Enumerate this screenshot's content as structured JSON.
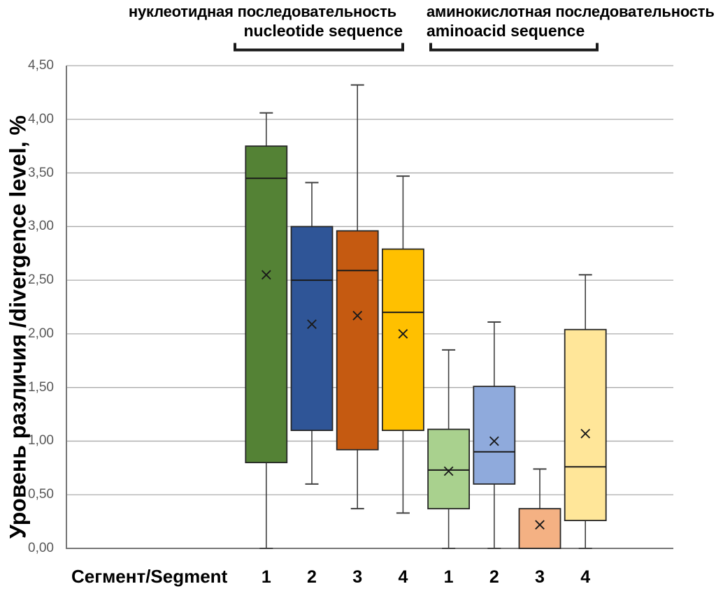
{
  "chart_data": {
    "type": "boxplot",
    "title_groups": [
      {
        "line1": "нуклеотидная последовательность",
        "line2": "nucleotide sequence"
      },
      {
        "line1": "аминокислотная последовательность",
        "line2": "aminoacid sequence"
      }
    ],
    "ylabel": "Уровень различия /divergence level, %",
    "xlabel": "Сегмент/Segment",
    "ylim": [
      0,
      4.5
    ],
    "ytick_step": 0.5,
    "ytick_labels": [
      "0,00",
      "0,50",
      "1,00",
      "1,50",
      "2,00",
      "2,50",
      "3,00",
      "3,50",
      "4,00",
      "4,50"
    ],
    "grid": true,
    "categories": [
      "1",
      "2",
      "3",
      "4",
      "1",
      "2",
      "3",
      "4"
    ],
    "series": [
      {
        "segment": "1",
        "group": "nucleotide sequence",
        "color": "#548235",
        "min": 0.0,
        "q1": 0.8,
        "median": 3.45,
        "q3": 3.75,
        "max": 4.06,
        "mean": 2.55
      },
      {
        "segment": "2",
        "group": "nucleotide sequence",
        "color": "#2F5597",
        "min": 0.6,
        "q1": 1.1,
        "median": 2.5,
        "q3": 3.0,
        "max": 3.41,
        "mean": 2.09
      },
      {
        "segment": "3",
        "group": "nucleotide sequence",
        "color": "#C55A11",
        "min": 0.37,
        "q1": 0.92,
        "median": 2.59,
        "q3": 2.96,
        "max": 4.32,
        "mean": 2.17
      },
      {
        "segment": "4",
        "group": "nucleotide sequence",
        "color": "#FFC000",
        "min": 0.33,
        "q1": 1.1,
        "median": 2.2,
        "q3": 2.79,
        "max": 3.47,
        "mean": 2.0
      },
      {
        "segment": "1",
        "group": "aminoacid sequence",
        "color": "#A9D18E",
        "min": 0.0,
        "q1": 0.37,
        "median": 0.73,
        "q3": 1.11,
        "max": 1.85,
        "mean": 0.72
      },
      {
        "segment": "2",
        "group": "aminoacid sequence",
        "color": "#8FAADC",
        "min": 0.0,
        "q1": 0.6,
        "median": 0.9,
        "q3": 1.51,
        "max": 2.11,
        "mean": 1.0
      },
      {
        "segment": "3",
        "group": "aminoacid sequence",
        "color": "#F4B183",
        "min": 0.0,
        "q1": 0.0,
        "median": 0.0,
        "q3": 0.37,
        "max": 0.74,
        "mean": 0.22
      },
      {
        "segment": "4",
        "group": "aminoacid sequence",
        "color": "#FFE699",
        "min": 0.0,
        "q1": 0.26,
        "median": 0.76,
        "q3": 2.04,
        "max": 2.55,
        "mean": 1.07
      }
    ],
    "colors": {
      "gridline": "#ABABAB",
      "axis": "#767676",
      "box_border": "#262626",
      "whisker": "#404040",
      "tick_label": "#595959",
      "text": "#000000"
    }
  }
}
